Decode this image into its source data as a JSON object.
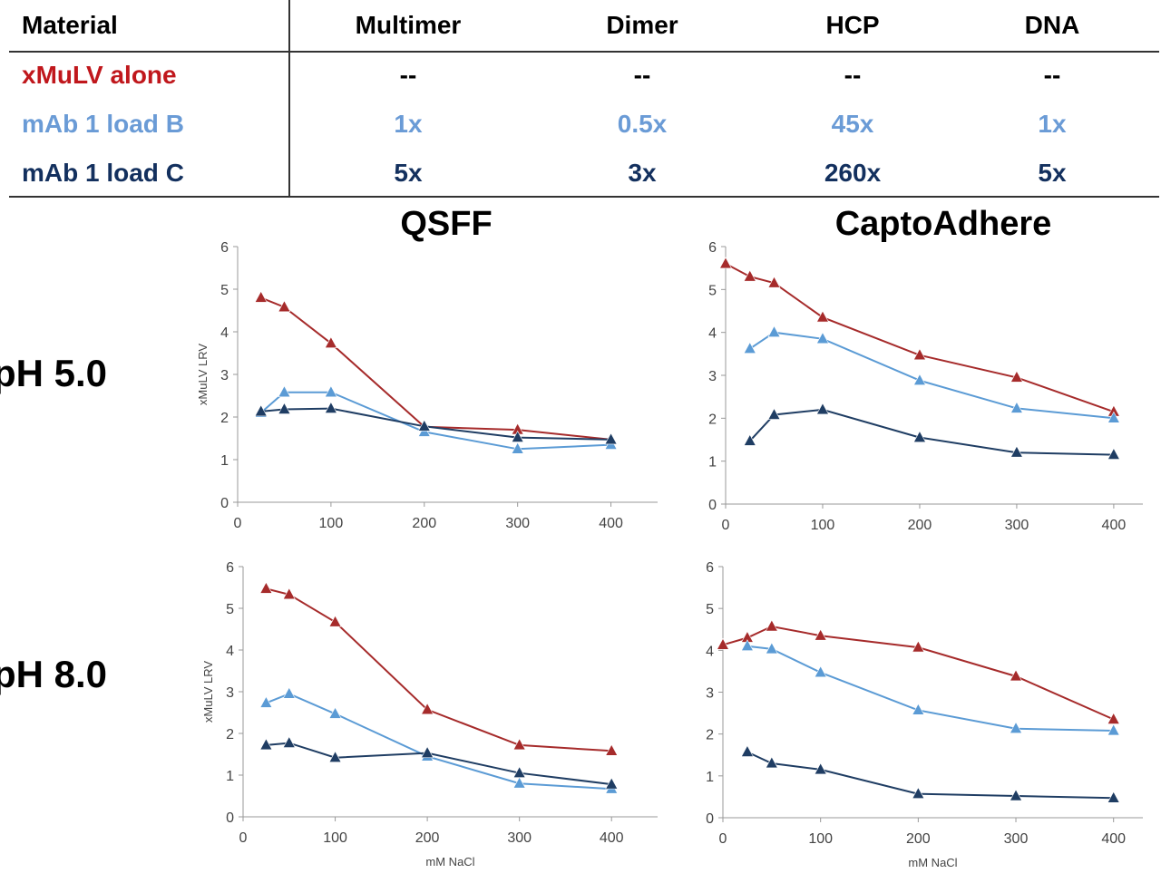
{
  "table": {
    "header": {
      "material": "Material",
      "multimer": "Multimer",
      "dimer": "Dimer",
      "hcp": "HCP",
      "dna": "DNA"
    },
    "rows": [
      {
        "material": "xMuLV alone",
        "multimer": "--",
        "dimer": "--",
        "hcp": "--",
        "dna": "--",
        "color": "#c0171c"
      },
      {
        "material": "mAb 1 load B",
        "multimer": "1x",
        "dimer": "0.5x",
        "hcp": "45x",
        "dna": "1x",
        "color": "#6a9bd6"
      },
      {
        "material": "mAb 1 load C",
        "multimer": "5x",
        "dimer": "3x",
        "hcp": "260x",
        "dna": "5x",
        "color": "#13305e"
      }
    ]
  },
  "panel_titles": {
    "qsff": "QSFF",
    "capto": "CaptoAdhere"
  },
  "ph_labels": {
    "ph5": "pH 5.0",
    "ph8": "pH 8.0"
  },
  "colors": {
    "xmulv": "#a62b2b",
    "loadB": "#5b9bd5",
    "loadC": "#1f3d63"
  },
  "chart_data": [
    {
      "type": "line",
      "ylabel": "xMuLV LRV",
      "xlabel": "",
      "xlim": [
        0,
        450
      ],
      "ylim": [
        0,
        6
      ],
      "xticks": [
        0,
        100,
        200,
        300,
        400
      ],
      "yticks": [
        0,
        1,
        2,
        3,
        4,
        5,
        6
      ],
      "series": [
        {
          "color": "#a62b2b",
          "x": [
            25,
            50,
            100,
            200,
            300,
            400
          ],
          "y": [
            4.8,
            4.58,
            3.73,
            1.77,
            1.7,
            1.47
          ]
        },
        {
          "color": "#5b9bd5",
          "x": [
            25,
            50,
            100,
            200,
            300,
            400
          ],
          "y": [
            2.1,
            2.58,
            2.58,
            1.65,
            1.25,
            1.35
          ]
        },
        {
          "color": "#1f3d63",
          "x": [
            25,
            50,
            100,
            200,
            300,
            400
          ],
          "y": [
            2.13,
            2.18,
            2.2,
            1.78,
            1.52,
            1.47
          ]
        }
      ]
    },
    {
      "type": "line",
      "ylabel": "",
      "xlabel": "",
      "xlim": [
        0,
        430
      ],
      "ylim": [
        0,
        6
      ],
      "xticks": [
        0,
        100,
        200,
        300,
        400
      ],
      "yticks": [
        0,
        1,
        2,
        3,
        4,
        5,
        6
      ],
      "series": [
        {
          "color": "#a62b2b",
          "x": [
            0,
            25,
            50,
            100,
            200,
            300,
            400
          ],
          "y": [
            5.6,
            5.3,
            5.15,
            4.35,
            3.47,
            2.95,
            2.15
          ]
        },
        {
          "color": "#5b9bd5",
          "x": [
            25,
            50,
            100,
            200,
            300,
            400
          ],
          "y": [
            3.62,
            4.0,
            3.85,
            2.88,
            2.23,
            2.0
          ]
        },
        {
          "color": "#1f3d63",
          "x": [
            25,
            50,
            100,
            200,
            300,
            400
          ],
          "y": [
            1.47,
            2.08,
            2.2,
            1.55,
            1.2,
            1.15
          ]
        }
      ]
    },
    {
      "type": "line",
      "ylabel": "xMuLV LRV",
      "xlabel": "mM NaCl",
      "xlim": [
        0,
        450
      ],
      "ylim": [
        0,
        6
      ],
      "xticks": [
        0,
        100,
        200,
        300,
        400
      ],
      "yticks": [
        0,
        1,
        2,
        3,
        4,
        5,
        6
      ],
      "series": [
        {
          "color": "#a62b2b",
          "x": [
            25,
            50,
            100,
            200,
            300,
            400
          ],
          "y": [
            5.47,
            5.33,
            4.67,
            2.57,
            1.72,
            1.58
          ]
        },
        {
          "color": "#5b9bd5",
          "x": [
            25,
            50,
            100,
            200,
            300,
            400
          ],
          "y": [
            2.73,
            2.95,
            2.47,
            1.45,
            0.8,
            0.67
          ]
        },
        {
          "color": "#1f3d63",
          "x": [
            25,
            50,
            100,
            200,
            300,
            400
          ],
          "y": [
            1.72,
            1.77,
            1.42,
            1.53,
            1.05,
            0.78
          ]
        }
      ]
    },
    {
      "type": "line",
      "ylabel": "",
      "xlabel": "mM NaCl",
      "xlim": [
        0,
        430
      ],
      "ylim": [
        0,
        6
      ],
      "xticks": [
        0,
        100,
        200,
        300,
        400
      ],
      "yticks": [
        0,
        1,
        2,
        3,
        4,
        5,
        6
      ],
      "series": [
        {
          "color": "#a62b2b",
          "x": [
            0,
            25,
            50,
            100,
            200,
            300,
            400
          ],
          "y": [
            4.13,
            4.3,
            4.57,
            4.35,
            4.07,
            3.38,
            2.35
          ]
        },
        {
          "color": "#5b9bd5",
          "x": [
            25,
            50,
            100,
            200,
            300,
            400
          ],
          "y": [
            4.1,
            4.03,
            3.47,
            2.57,
            2.13,
            2.08
          ]
        },
        {
          "color": "#1f3d63",
          "x": [
            25,
            50,
            100,
            200,
            300,
            400
          ],
          "y": [
            1.57,
            1.3,
            1.15,
            0.57,
            0.52,
            0.47
          ]
        }
      ]
    }
  ]
}
